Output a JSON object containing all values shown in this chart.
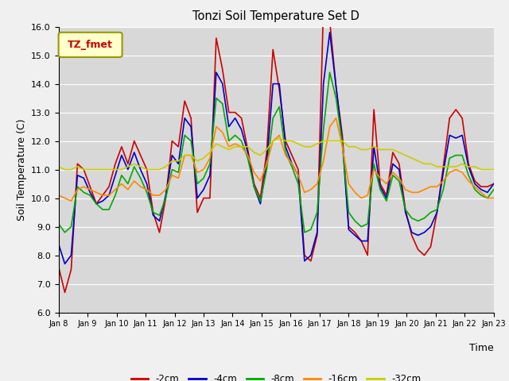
{
  "title": "Tonzi Soil Temperature Set D",
  "xlabel": "Time",
  "ylabel": "Soil Temperature (C)",
  "ylim": [
    6.0,
    16.0
  ],
  "yticks": [
    6.0,
    7.0,
    8.0,
    9.0,
    10.0,
    11.0,
    12.0,
    13.0,
    14.0,
    15.0,
    16.0
  ],
  "xtick_labels": [
    "Jan 8",
    "Jan 9",
    "Jan 10",
    "Jan 11",
    "Jan 12",
    "Jan 13",
    "Jan 14",
    "Jan 15",
    "Jan 16",
    "Jan 17",
    "Jan 18",
    "Jan 19",
    "Jan 20",
    "Jan 21",
    "Jan 22",
    "Jan 23"
  ],
  "legend_label": "TZ_fmet",
  "series": {
    "-2cm": {
      "color": "#cc0000",
      "data": [
        7.6,
        6.7,
        7.5,
        11.2,
        11.0,
        10.4,
        9.8,
        10.1,
        10.4,
        11.2,
        11.8,
        11.2,
        12.0,
        11.5,
        11.0,
        9.5,
        8.8,
        10.0,
        12.0,
        11.8,
        13.4,
        12.8,
        9.5,
        10.0,
        10.0,
        15.6,
        14.5,
        13.0,
        13.0,
        12.8,
        11.7,
        10.5,
        10.0,
        11.6,
        15.2,
        13.8,
        12.0,
        11.5,
        11.0,
        8.0,
        7.8,
        8.7,
        16.7,
        16.2,
        13.9,
        12.2,
        9.0,
        8.8,
        8.5,
        8.0,
        13.1,
        10.5,
        10.1,
        11.6,
        11.2,
        9.6,
        8.7,
        8.2,
        8.0,
        8.3,
        9.5,
        11.1,
        12.8,
        13.1,
        12.8,
        11.2,
        10.6,
        10.4,
        10.4,
        10.5
      ]
    },
    "-4cm": {
      "color": "#0000cc",
      "data": [
        8.4,
        7.7,
        8.0,
        10.8,
        10.7,
        10.2,
        9.8,
        9.9,
        10.1,
        10.8,
        11.5,
        11.0,
        11.6,
        11.0,
        10.5,
        9.4,
        9.2,
        10.1,
        11.5,
        11.2,
        12.8,
        12.5,
        10.0,
        10.3,
        10.8,
        14.4,
        14.0,
        12.5,
        12.8,
        12.4,
        11.6,
        10.4,
        9.8,
        11.2,
        14.0,
        14.0,
        11.8,
        11.2,
        10.8,
        7.8,
        8.0,
        8.8,
        14.0,
        15.8,
        13.9,
        12.0,
        8.9,
        8.7,
        8.5,
        8.5,
        11.8,
        10.4,
        10.0,
        11.2,
        11.0,
        9.5,
        8.8,
        8.7,
        8.8,
        9.0,
        9.5,
        10.9,
        12.2,
        12.1,
        12.2,
        11.1,
        10.5,
        10.3,
        10.2,
        10.5
      ]
    },
    "-8cm": {
      "color": "#00aa00",
      "data": [
        9.1,
        8.8,
        9.0,
        10.4,
        10.2,
        10.1,
        9.8,
        9.6,
        9.6,
        10.1,
        10.8,
        10.5,
        11.1,
        10.7,
        10.2,
        9.5,
        9.4,
        10.0,
        11.0,
        10.9,
        12.2,
        12.0,
        10.5,
        10.7,
        11.2,
        13.5,
        13.3,
        12.0,
        12.2,
        12.0,
        11.4,
        10.4,
        9.9,
        11.0,
        12.8,
        13.2,
        11.6,
        11.1,
        10.5,
        8.8,
        8.9,
        9.5,
        12.4,
        14.4,
        13.5,
        11.9,
        9.5,
        9.2,
        9.0,
        9.1,
        11.2,
        10.3,
        9.9,
        10.8,
        10.6,
        9.6,
        9.3,
        9.2,
        9.3,
        9.5,
        9.6,
        10.3,
        11.4,
        11.5,
        11.5,
        10.8,
        10.3,
        10.1,
        10.0,
        10.3
      ]
    },
    "-16cm": {
      "color": "#ff8800",
      "data": [
        10.1,
        10.0,
        9.9,
        10.3,
        10.4,
        10.3,
        10.2,
        10.1,
        10.1,
        10.3,
        10.5,
        10.3,
        10.6,
        10.4,
        10.3,
        10.1,
        10.1,
        10.3,
        10.8,
        10.7,
        11.5,
        11.5,
        10.9,
        11.0,
        11.4,
        12.5,
        12.3,
        11.8,
        11.9,
        11.8,
        11.5,
        10.9,
        10.6,
        11.2,
        12.0,
        12.2,
        11.5,
        11.2,
        10.8,
        10.2,
        10.3,
        10.5,
        11.3,
        12.5,
        12.8,
        11.8,
        10.5,
        10.2,
        10.0,
        10.1,
        11.0,
        10.7,
        10.5,
        10.9,
        10.7,
        10.3,
        10.2,
        10.2,
        10.3,
        10.4,
        10.4,
        10.6,
        10.9,
        11.0,
        10.9,
        10.6,
        10.4,
        10.2,
        10.0,
        10.0
      ]
    },
    "-32cm": {
      "color": "#cccc00",
      "data": [
        11.1,
        11.0,
        11.0,
        11.1,
        11.0,
        11.0,
        11.0,
        11.0,
        11.0,
        11.0,
        11.0,
        11.1,
        11.2,
        11.1,
        11.0,
        11.0,
        11.0,
        11.1,
        11.3,
        11.3,
        11.5,
        11.5,
        11.3,
        11.4,
        11.6,
        11.9,
        11.8,
        11.7,
        11.8,
        11.8,
        11.8,
        11.6,
        11.5,
        11.7,
        12.0,
        12.1,
        12.0,
        12.0,
        11.9,
        11.8,
        11.8,
        11.9,
        12.0,
        12.0,
        12.0,
        12.0,
        11.8,
        11.8,
        11.7,
        11.7,
        11.8,
        11.7,
        11.7,
        11.7,
        11.6,
        11.5,
        11.4,
        11.3,
        11.2,
        11.2,
        11.1,
        11.1,
        11.1,
        11.1,
        11.2,
        11.1,
        11.1,
        11.0,
        11.0,
        11.0
      ]
    }
  },
  "n_points": 70,
  "bg_color": "#d8d8d8",
  "fig_bg_color": "#f0f0f0",
  "grid_color": "#ffffff",
  "legend_entries": [
    "-2cm",
    "-4cm",
    "-8cm",
    "-16cm",
    "-32cm"
  ],
  "legend_colors": [
    "#cc0000",
    "#0000cc",
    "#00aa00",
    "#ff8800",
    "#cccc00"
  ],
  "legend_box_facecolor": "#ffffcc",
  "legend_box_edgecolor": "#999900",
  "legend_text_color": "#cc0000"
}
